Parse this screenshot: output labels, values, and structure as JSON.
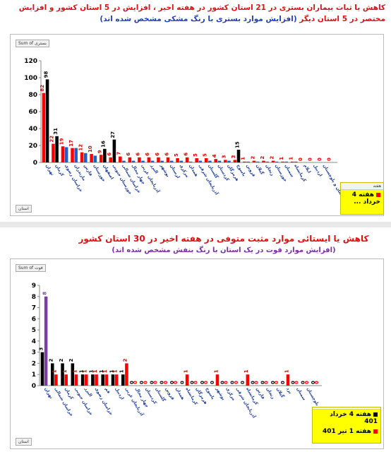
{
  "panel1": {
    "title_line1": "کاهش یا ثبات بیماران بستری در 21 استان کشور در هفته اخیر ، افزایش در 5 استان کشور و افزایش",
    "title_line2_a": "مختصر در 5 استان دیگر ",
    "title_line2_b": "(افزایش موارد بستری با رنگ مشکی مشخص شده اند)",
    "field_label": "Sum of بستری",
    "axis_button": "استان",
    "legend_header": "هفته",
    "legend_items": [
      "هفته 4 خرداد ..."
    ]
  },
  "panel2": {
    "title_line1": "کاهش یا ایستائی موارد مثبت متوفی در هفته اخیر در 30 استان کشور",
    "title_line2": "(افزایش موارد فوت در یک استان با رنگ بنفش مشخص شده اند)",
    "field_label": "Sum of فوت",
    "axis_button": "استان",
    "legend_header": "",
    "legend_items": [
      "هفته 4 خرداد 401",
      "هفته 1 تیر 401"
    ]
  },
  "colors": {
    "red": "#ff0000",
    "black": "#000000",
    "blue": "#1f5fc8",
    "purple": "#7b3fa0",
    "label_red": "#e00000"
  },
  "chart_data": [
    {
      "type": "bar",
      "ylim": [
        0,
        120
      ],
      "yticks": [
        0,
        20,
        40,
        60,
        80,
        100,
        120
      ],
      "categories": [
        "تهران",
        "کرمان",
        "خراسان رضوی",
        "مازندران",
        "فارس",
        "خوزستان",
        "اصفهان",
        "خوزستان جنوبی",
        "خراسان شمالی",
        "چهار محال",
        "آذربایجان غربی",
        "البرز",
        "بوشهر",
        "لرستان",
        "مرکزی",
        "همدان",
        "آذربایجان شرقی",
        "گلستان",
        "کردستان",
        "هرمزگان",
        "یاسوج",
        "قزوین",
        "گیلان",
        "زنجان",
        "خوزستان",
        "سمنان",
        "کرمانشاه",
        "ایلام",
        "اردبیل",
        "سیستان و بلوچستان",
        ""
      ],
      "series": [
        {
          "values": [
            82,
            22,
            19,
            17,
            12,
            10,
            9,
            6,
            7,
            6,
            6,
            6,
            6,
            6,
            5,
            6,
            5,
            5,
            4,
            3,
            3,
            1,
            2,
            2,
            2,
            1,
            1,
            0,
            0,
            0,
            0
          ]
        },
        {
          "values": [
            98,
            31,
            18,
            17,
            11,
            8,
            16,
            27,
            2,
            2,
            2,
            2,
            2,
            2,
            2,
            1,
            2,
            2,
            2,
            2,
            15,
            1,
            1,
            1,
            1,
            1,
            1,
            0,
            0,
            0,
            0
          ]
        }
      ],
      "data_labels_black": [
        98,
        31,
        "",
        "",
        "",
        "",
        16,
        27,
        "",
        "",
        "",
        "",
        "",
        "",
        "",
        "",
        "",
        "",
        "",
        "",
        15,
        "",
        "",
        "",
        "",
        "",
        "",
        "",
        "",
        "",
        ""
      ],
      "data_labels_red": [
        82,
        22,
        19,
        17,
        12,
        10,
        9,
        6,
        7,
        6,
        6,
        6,
        6,
        6,
        5,
        6,
        5,
        5,
        4,
        3,
        3,
        1,
        2,
        2,
        2,
        1,
        1,
        0,
        0,
        0,
        0
      ]
    },
    {
      "type": "bar",
      "ylim": [
        0,
        9
      ],
      "yticks": [
        0,
        1,
        2,
        3,
        4,
        5,
        6,
        7,
        8,
        9
      ],
      "categories": [
        "تهران",
        "خراسان شمالی",
        "کرمان",
        "خراسان جنوبی",
        "البرز",
        "خراسان رضوی",
        "قم",
        "اردبیل",
        "آذربایجان غربی",
        "چهار محال",
        "کردستان",
        "گلستان",
        "قزوین",
        "همدان",
        "کرمانشاه",
        "هرمزگان",
        "یاسوج",
        "بوشهر",
        "مرکزی",
        "آذربایجان شرقی",
        "کرمانشاه",
        "فارس",
        "زنجان",
        "گیلان",
        "یزد",
        "سمنان",
        "سیستان و بلوچستان",
        ""
      ],
      "series": [
        {
          "name": "هفته 4 خرداد 401",
          "values": [
            3,
            2,
            2,
            2,
            1,
            1,
            1,
            1,
            1,
            0,
            0,
            0,
            0,
            0,
            0,
            0,
            0,
            0,
            0,
            0,
            0,
            0,
            0,
            0,
            0,
            0,
            0,
            0
          ]
        },
        {
          "name": "هفته 1 تیر 401",
          "values": [
            8,
            1,
            1,
            1,
            1,
            1,
            1,
            1,
            2,
            0,
            0,
            0,
            0,
            0,
            1,
            0,
            0,
            1,
            0,
            0,
            1,
            0,
            0,
            0,
            1,
            0,
            0,
            0
          ]
        }
      ]
    }
  ]
}
